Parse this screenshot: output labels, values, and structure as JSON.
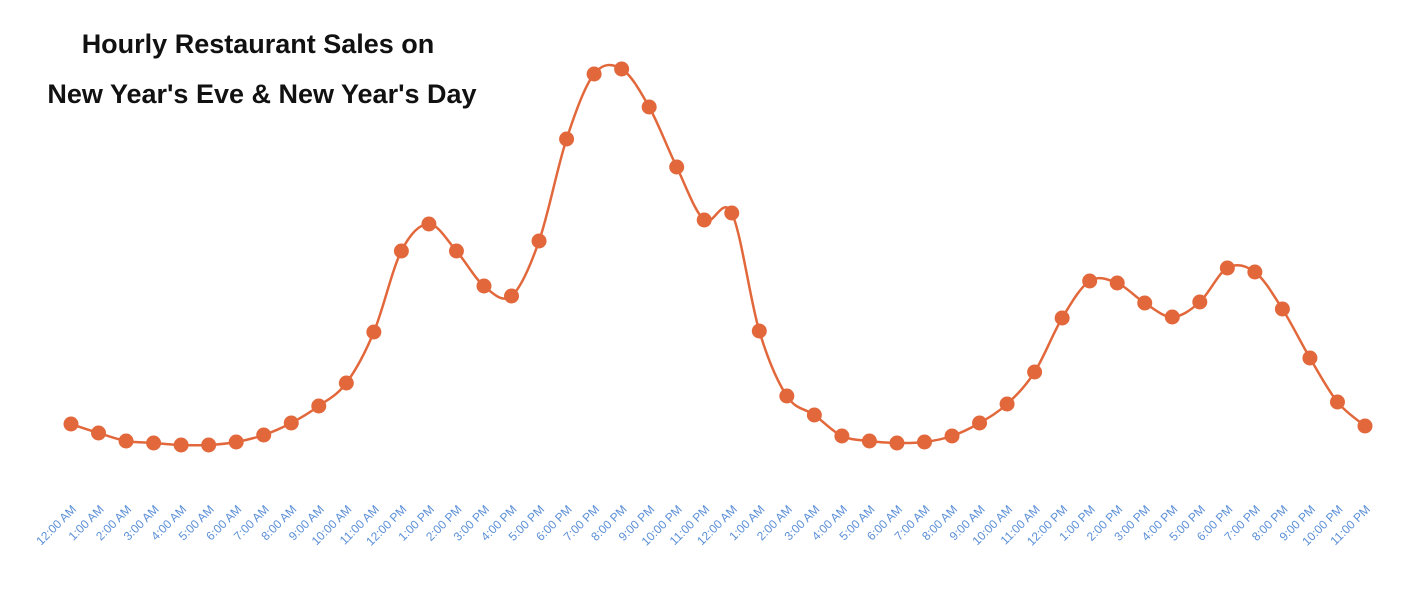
{
  "chart_data": {
    "type": "line",
    "title": [
      "Hourly Restaurant Sales on",
      "New Year's Eve & New Year's Day"
    ],
    "categories": [
      "12:00 AM",
      "1:00 AM",
      "2:00 AM",
      "3:00 AM",
      "4:00 AM",
      "5:00 AM",
      "6:00 AM",
      "7:00 AM",
      "8:00 AM",
      "9:00 AM",
      "10:00 AM",
      "11:00 AM",
      "12:00 PM",
      "1:00 PM",
      "2:00 PM",
      "3:00 PM",
      "4:00 PM",
      "5:00 PM",
      "6:00 PM",
      "7:00 PM",
      "8:00 PM",
      "9:00 PM",
      "10:00 PM",
      "11:00 PM",
      "12:00 AM",
      "1:00 AM",
      "2:00 AM",
      "3:00 AM",
      "4:00 AM",
      "5:00 AM",
      "6:00 AM",
      "7:00 AM",
      "8:00 AM",
      "9:00 AM",
      "10:00 AM",
      "11:00 AM",
      "12:00 PM",
      "1:00 PM",
      "2:00 PM",
      "3:00 PM",
      "4:00 PM",
      "5:00 PM",
      "6:00 PM",
      "7:00 PM",
      "8:00 PM",
      "9:00 PM",
      "10:00 PM",
      "11:00 PM"
    ],
    "values": [
      14,
      11.75,
      9.75,
      9.25,
      8.75,
      8.75,
      9.5,
      11.25,
      14.25,
      18.5,
      24.25,
      37,
      57.25,
      64,
      57.25,
      48.5,
      46,
      59.75,
      85.25,
      101.5,
      102.75,
      93.25,
      78.25,
      65,
      66.75,
      37.25,
      21,
      16.25,
      11,
      9.75,
      9.25,
      9.5,
      11,
      14.25,
      19,
      27,
      40.5,
      49.75,
      49.25,
      44.25,
      40.75,
      44.5,
      53,
      52,
      42.75,
      30.5,
      19.5,
      13.5
    ],
    "color": "#e2683c",
    "label_color": "#5b8fd6",
    "ylim": [
      0,
      105
    ]
  }
}
